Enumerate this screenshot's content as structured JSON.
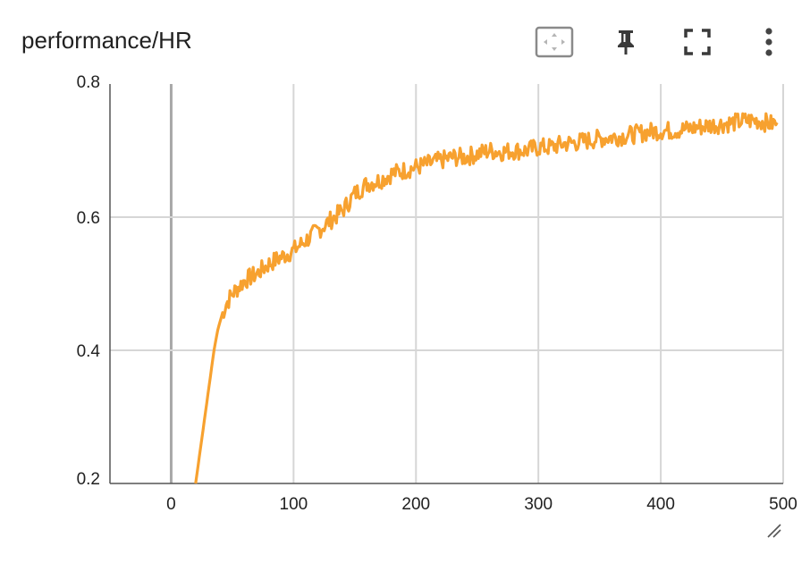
{
  "card": {
    "title": "performance/HR"
  },
  "toolbar": {
    "fit_icon": "fit-domain-icon",
    "pin_icon": "pin-icon",
    "fullscreen_icon": "fullscreen-icon",
    "menu_icon": "more-vert-icon"
  },
  "colors": {
    "series": "#f7a12f",
    "grid": "#d6d6d6",
    "zero_axis": "#a8a8a8",
    "axis": "#555555"
  },
  "chart_data": {
    "type": "line",
    "title": "performance/HR",
    "xlabel": "",
    "ylabel": "",
    "xlim": [
      -50,
      500
    ],
    "ylim": [
      0.2,
      0.8
    ],
    "grid": true,
    "x_ticks": [
      0,
      100,
      200,
      300,
      400,
      500
    ],
    "x_tick_labels": [
      "0",
      "100",
      "200",
      "300",
      "400",
      "500"
    ],
    "y_ticks": [
      0.2,
      0.4,
      0.6,
      0.8
    ],
    "y_tick_labels": [
      "0.2",
      "0.4",
      "0.6",
      "0.8"
    ],
    "series": [
      {
        "name": "performance/HR",
        "x": [
          20,
          23,
          26,
          29,
          32,
          35,
          38,
          41,
          45,
          50,
          55,
          60,
          70,
          80,
          90,
          100,
          110,
          120,
          130,
          140,
          150,
          160,
          170,
          180,
          190,
          200,
          210,
          220,
          230,
          240,
          250,
          260,
          270,
          280,
          290,
          300,
          310,
          320,
          330,
          340,
          350,
          360,
          370,
          380,
          390,
          400,
          410,
          420,
          430,
          440,
          450,
          460,
          470,
          480,
          490,
          495
        ],
        "y": [
          0.2,
          0.24,
          0.28,
          0.32,
          0.36,
          0.4,
          0.43,
          0.45,
          0.47,
          0.485,
          0.495,
          0.505,
          0.515,
          0.53,
          0.54,
          0.55,
          0.565,
          0.58,
          0.595,
          0.61,
          0.635,
          0.65,
          0.655,
          0.665,
          0.67,
          0.675,
          0.68,
          0.685,
          0.69,
          0.69,
          0.695,
          0.7,
          0.698,
          0.7,
          0.7,
          0.705,
          0.705,
          0.71,
          0.712,
          0.715,
          0.718,
          0.72,
          0.722,
          0.725,
          0.728,
          0.73,
          0.73,
          0.732,
          0.735,
          0.738,
          0.74,
          0.742,
          0.745,
          0.745,
          0.74,
          0.742
        ]
      }
    ]
  }
}
